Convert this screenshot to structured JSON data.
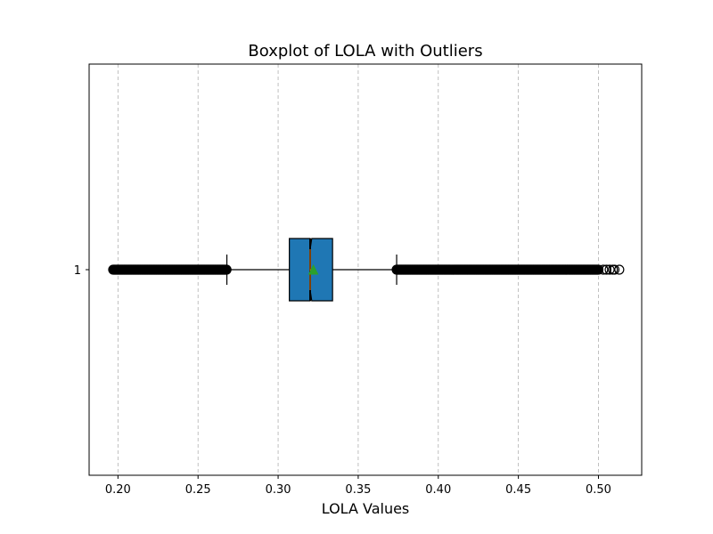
{
  "chart_data": {
    "type": "boxplot",
    "title": "Boxplot of LOLA with Outliers",
    "xlabel": "LOLA Values",
    "ylabel": "",
    "orientation": "horizontal",
    "xlim": [
      0.182,
      0.527
    ],
    "xticks": [
      0.2,
      0.25,
      0.3,
      0.35,
      0.4,
      0.45,
      0.5
    ],
    "xtick_labels": [
      "0.20",
      "0.25",
      "0.30",
      "0.35",
      "0.40",
      "0.45",
      "0.50"
    ],
    "ytick_labels": [
      "1"
    ],
    "grid": {
      "x": true,
      "y": false,
      "style": "dashed"
    },
    "notch": true,
    "show_mean": true,
    "box": {
      "category": "1",
      "whisker_low": 0.268,
      "q1": 0.307,
      "notch_low": 0.32,
      "median": 0.32,
      "notch_high": 0.321,
      "q3": 0.334,
      "whisker_high": 0.374,
      "mean": 0.322
    },
    "outliers_low_range": [
      0.197,
      0.268
    ],
    "outliers_high_range": [
      0.374,
      0.5
    ],
    "outliers_sparse": [
      0.503,
      0.505,
      0.507,
      0.509,
      0.51,
      0.513
    ],
    "colors": {
      "box_fill": "#1f77b4",
      "edge": "#000000",
      "median": "#ff7f0e",
      "mean_marker": "#2ca02c",
      "grid": "#b0b0b0"
    }
  }
}
